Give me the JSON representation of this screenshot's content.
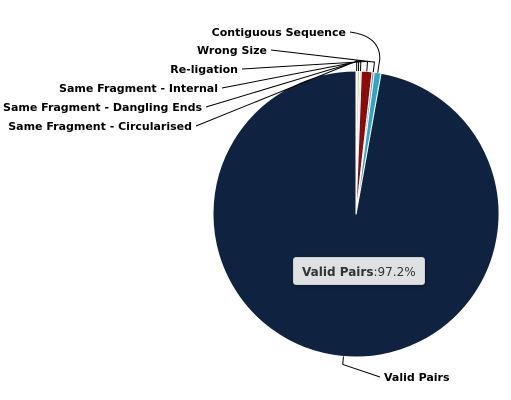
{
  "chart_data": {
    "type": "pie",
    "title": "",
    "slices": [
      {
        "name": "Valid Pairs",
        "value": 97.2,
        "color": "#0f2340"
      },
      {
        "name": "Same Fragment - Circularised",
        "value": 0.15,
        "color": "#e4e4e4"
      },
      {
        "name": "Same Fragment - Dangling Ends",
        "value": 0.25,
        "color": "#b9d67a"
      },
      {
        "name": "Same Fragment - Internal",
        "value": 0.2,
        "color": "#d8cfe6"
      },
      {
        "name": "Re-ligation",
        "value": 1.2,
        "color": "#8b0a0a"
      },
      {
        "name": "Wrong Size",
        "value": 0.25,
        "color": "#8e8e8e"
      },
      {
        "name": "Contiguous Sequence",
        "value": 0.75,
        "color": "#2aa7cb"
      }
    ],
    "tooltip": {
      "name": "Valid Pairs",
      "separator": ":",
      "value_text": "97.2%"
    }
  }
}
